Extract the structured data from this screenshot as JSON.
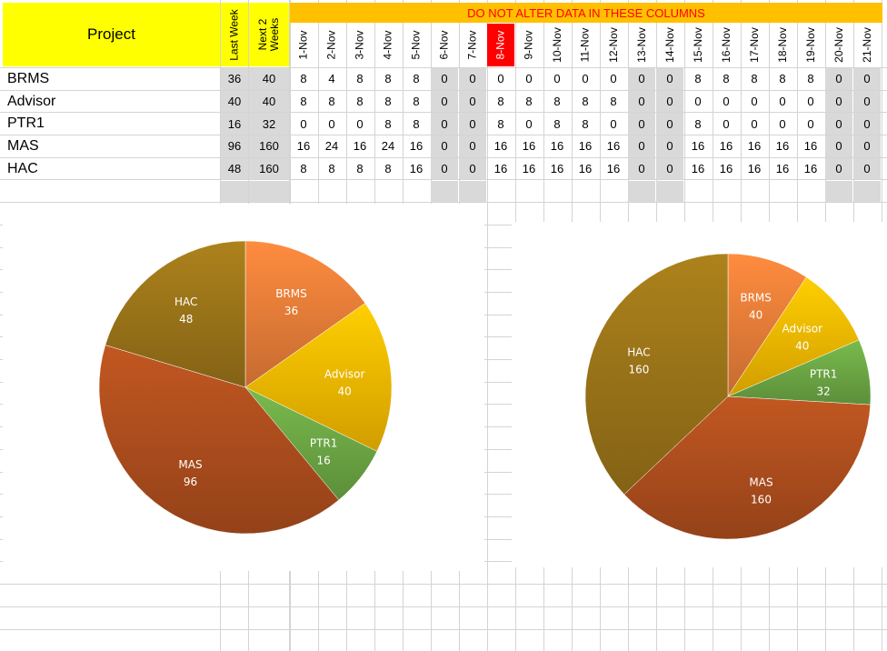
{
  "sheet": {
    "project_header": "Project",
    "notice": "DO NOT ALTER DATA IN THESE COLUMNS",
    "summary_headers": [
      "Last Week",
      "Next 2 Weeks"
    ],
    "dates": [
      "1-Nov",
      "2-Nov",
      "3-Nov",
      "4-Nov",
      "5-Nov",
      "6-Nov",
      "7-Nov",
      "8-Nov",
      "9-Nov",
      "10-Nov",
      "11-Nov",
      "12-Nov",
      "13-Nov",
      "14-Nov",
      "15-Nov",
      "16-Nov",
      "17-Nov",
      "18-Nov",
      "19-Nov",
      "20-Nov",
      "21-Nov"
    ],
    "weekend_dates": [
      "6-Nov",
      "7-Nov",
      "13-Nov",
      "14-Nov",
      "20-Nov",
      "21-Nov"
    ],
    "highlight_date": "8-Nov",
    "rows": [
      {
        "project": "BRMS",
        "last_week": "36",
        "next_2_weeks": "40",
        "days": [
          "8",
          "4",
          "8",
          "8",
          "8",
          "0",
          "0",
          "0",
          "0",
          "0",
          "0",
          "0",
          "0",
          "0",
          "8",
          "8",
          "8",
          "8",
          "8",
          "0",
          "0"
        ]
      },
      {
        "project": "Advisor",
        "last_week": "40",
        "next_2_weeks": "40",
        "days": [
          "8",
          "8",
          "8",
          "8",
          "8",
          "0",
          "0",
          "8",
          "8",
          "8",
          "8",
          "8",
          "0",
          "0",
          "0",
          "0",
          "0",
          "0",
          "0",
          "0",
          "0"
        ]
      },
      {
        "project": "PTR1",
        "last_week": "16",
        "next_2_weeks": "32",
        "days": [
          "0",
          "0",
          "0",
          "8",
          "8",
          "0",
          "0",
          "8",
          "0",
          "8",
          "8",
          "0",
          "0",
          "0",
          "8",
          "0",
          "0",
          "0",
          "0",
          "0",
          "0"
        ]
      },
      {
        "project": "MAS",
        "last_week": "96",
        "next_2_weeks": "160",
        "days": [
          "16",
          "24",
          "16",
          "24",
          "16",
          "0",
          "0",
          "16",
          "16",
          "16",
          "16",
          "16",
          "0",
          "0",
          "16",
          "16",
          "16",
          "16",
          "16",
          "0",
          "0"
        ]
      },
      {
        "project": "HAC",
        "last_week": "48",
        "next_2_weeks": "160",
        "days": [
          "8",
          "8",
          "8",
          "8",
          "16",
          "0",
          "0",
          "16",
          "16",
          "16",
          "16",
          "16",
          "0",
          "0",
          "16",
          "16",
          "16",
          "16",
          "16",
          "0",
          "0"
        ]
      }
    ]
  },
  "colors": {
    "header_yellow": "#ffff00",
    "header_orange": "#ffc000",
    "notice_text": "#ff0000",
    "weekend_fill": "#d9d9d9",
    "today_fill": "#ff0000"
  },
  "chart_data": [
    {
      "type": "pie",
      "title": "",
      "categories": [
        "BRMS",
        "Advisor",
        "PTR1",
        "MAS",
        "HAC"
      ],
      "values": [
        36,
        40,
        16,
        96,
        48
      ],
      "colors": [
        "#f0823a",
        "#ffc000",
        "#70ad47",
        "#b4511f",
        "#a0781a"
      ],
      "data_labels": "category and value"
    },
    {
      "type": "pie",
      "title": "",
      "categories": [
        "BRMS",
        "Advisor",
        "PTR1",
        "MAS",
        "HAC"
      ],
      "values": [
        40,
        40,
        32,
        160,
        160
      ],
      "colors": [
        "#f0823a",
        "#ffc000",
        "#70ad47",
        "#b4511f",
        "#a0781a"
      ],
      "data_labels": "category and value"
    }
  ]
}
